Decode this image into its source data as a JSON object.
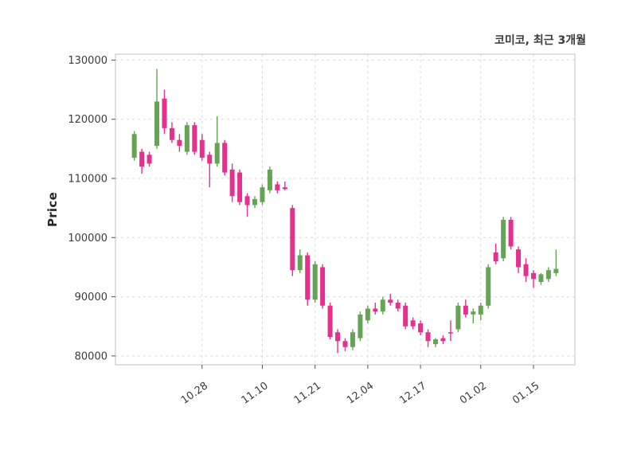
{
  "chart_data": {
    "type": "candlestick",
    "title": "코미코, 최근 3개월",
    "ylabel": "Price",
    "ylim": [
      78500,
      131000
    ],
    "grid": "dashed",
    "legend": "none",
    "up_color": "#66a355",
    "down_color": "#e5308e",
    "y_ticks": [
      80000,
      90000,
      100000,
      110000,
      120000,
      130000
    ],
    "x_ticks": [
      {
        "index": 9,
        "label": "10.28"
      },
      {
        "index": 17,
        "label": "11.10"
      },
      {
        "index": 24,
        "label": "11.21"
      },
      {
        "index": 31,
        "label": "12.04"
      },
      {
        "index": 38,
        "label": "12.17"
      },
      {
        "index": 46,
        "label": "01.02"
      },
      {
        "index": 53,
        "label": "01.15"
      }
    ],
    "ohlc_format": [
      "open",
      "high",
      "low",
      "close"
    ],
    "candles": [
      [
        113500,
        118000,
        113000,
        117500
      ],
      [
        114500,
        115000,
        110800,
        112000
      ],
      [
        114000,
        114500,
        112000,
        112500
      ],
      [
        115500,
        128500,
        115000,
        123000
      ],
      [
        123500,
        125000,
        117500,
        118500
      ],
      [
        118500,
        119500,
        116000,
        116500
      ],
      [
        116500,
        117500,
        114500,
        115500
      ],
      [
        114500,
        119500,
        114000,
        119000
      ],
      [
        119000,
        119500,
        114000,
        114500
      ],
      [
        116500,
        117500,
        113000,
        113500
      ],
      [
        114000,
        114500,
        108500,
        112500
      ],
      [
        112500,
        120500,
        112000,
        116000
      ],
      [
        116000,
        116500,
        110500,
        111000
      ],
      [
        111500,
        112500,
        106000,
        107000
      ],
      [
        111000,
        111500,
        105500,
        106000
      ],
      [
        107000,
        107500,
        103500,
        105500
      ],
      [
        105500,
        107000,
        105000,
        106500
      ],
      [
        106000,
        109000,
        105500,
        108500
      ],
      [
        108000,
        112000,
        107500,
        111500
      ],
      [
        109000,
        109500,
        107500,
        108000
      ],
      [
        108500,
        109500,
        108000,
        108200
      ],
      [
        105000,
        105500,
        93500,
        94500
      ],
      [
        94500,
        98000,
        94000,
        97000
      ],
      [
        97000,
        97500,
        88500,
        89500
      ],
      [
        89500,
        96000,
        89000,
        95500
      ],
      [
        95000,
        95500,
        88000,
        88500
      ],
      [
        88500,
        89000,
        82800,
        83200
      ],
      [
        84000,
        84500,
        80500,
        82500
      ],
      [
        82500,
        83000,
        80800,
        81500
      ],
      [
        81500,
        84500,
        81000,
        84000
      ],
      [
        83000,
        87500,
        82500,
        87000
      ],
      [
        86000,
        88500,
        85500,
        88000
      ],
      [
        88000,
        89000,
        87000,
        87500
      ],
      [
        87500,
        90000,
        87000,
        89500
      ],
      [
        89500,
        90500,
        88500,
        89000
      ],
      [
        89000,
        89500,
        87500,
        88000
      ],
      [
        88500,
        89000,
        84500,
        85000
      ],
      [
        86000,
        86500,
        84500,
        85000
      ],
      [
        85500,
        86000,
        83500,
        84000
      ],
      [
        84000,
        84500,
        81500,
        82500
      ],
      [
        82000,
        83000,
        81500,
        82800
      ],
      [
        83000,
        83500,
        82000,
        82500
      ],
      [
        84000,
        86000,
        82500,
        83800
      ],
      [
        84500,
        89000,
        84000,
        88500
      ],
      [
        88500,
        89500,
        86500,
        87000
      ],
      [
        87000,
        88000,
        85500,
        87500
      ],
      [
        87000,
        89000,
        86000,
        88500
      ],
      [
        88500,
        95500,
        88000,
        95000
      ],
      [
        97500,
        99000,
        95500,
        96000
      ],
      [
        96500,
        103500,
        96000,
        103000
      ],
      [
        103000,
        103500,
        98000,
        98500
      ],
      [
        98000,
        98500,
        94000,
        95000
      ],
      [
        95500,
        96500,
        92500,
        93500
      ],
      [
        94000,
        94500,
        91500,
        93000
      ],
      [
        92500,
        94000,
        92000,
        93800
      ],
      [
        93000,
        95000,
        92500,
        94500
      ],
      [
        94000,
        98000,
        93500,
        94700
      ]
    ]
  }
}
